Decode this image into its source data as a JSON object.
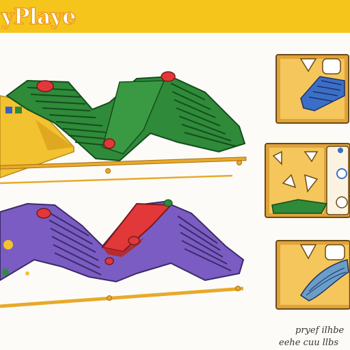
{
  "header": {
    "brand": "Playe",
    "brand_prefix": "y"
  },
  "colors": {
    "banner": "#f5c51c",
    "green_track": "#2f8a3a",
    "purple_track": "#7b5cc2",
    "red_slide": "#e2383a",
    "blue_slide": "#3b6fc7",
    "rail": "#e8a92a",
    "yellow_panel": "#f2c230",
    "panel_frame": "#e0a23a"
  },
  "footer": {
    "caption_line1": "pryef ilhbe",
    "caption_line2": "eehe cuu llbs"
  }
}
